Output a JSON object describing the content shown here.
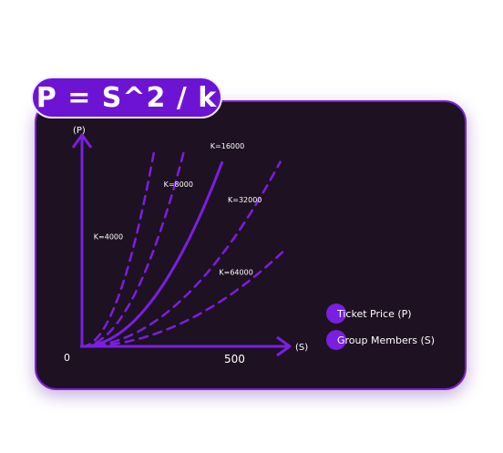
{
  "formula": "P = S^2 / k",
  "chart_data": {
    "type": "line",
    "title": "",
    "xlabel": "(S)",
    "ylabel": "(P)",
    "origin_label": "0",
    "x_tick_label": "500",
    "x_tick_value": 500,
    "xlim": [
      0,
      700
    ],
    "ylim": [
      0,
      15
    ],
    "grid": false,
    "equation": "P = S^2 / k",
    "series": [
      {
        "name": "K=4000",
        "k": 4000,
        "style": "dashed",
        "x": [
          0,
          100,
          150,
          200,
          250
        ],
        "y": [
          0,
          2.5,
          5.63,
          10,
          15.63
        ]
      },
      {
        "name": "K=8000",
        "k": 8000,
        "style": "dashed",
        "x": [
          0,
          100,
          200,
          300,
          350
        ],
        "y": [
          0,
          1.25,
          5,
          11.25,
          15.31
        ]
      },
      {
        "name": "K=16000",
        "k": 16000,
        "style": "solid",
        "x": [
          0,
          100,
          200,
          300,
          400,
          480
        ],
        "y": [
          0,
          0.63,
          2.5,
          5.63,
          10,
          14.4
        ]
      },
      {
        "name": "K=32000",
        "k": 32000,
        "style": "dashed",
        "x": [
          0,
          200,
          400,
          500,
          600,
          680
        ],
        "y": [
          0,
          1.25,
          5,
          7.81,
          11.25,
          14.45
        ]
      },
      {
        "name": "K=64000",
        "k": 64000,
        "style": "dashed",
        "x": [
          0,
          200,
          400,
          600,
          700
        ],
        "y": [
          0,
          0.63,
          2.5,
          5.63,
          7.66
        ]
      }
    ],
    "legend": [
      {
        "label": "Ticket Price (P)",
        "color": "#7a1fe0"
      },
      {
        "label": "Group Members (S)",
        "color": "#7a1fe0"
      }
    ],
    "colors": {
      "line": "#7a1fe0",
      "background": "#1e1122",
      "border": "#7c22d6"
    }
  }
}
